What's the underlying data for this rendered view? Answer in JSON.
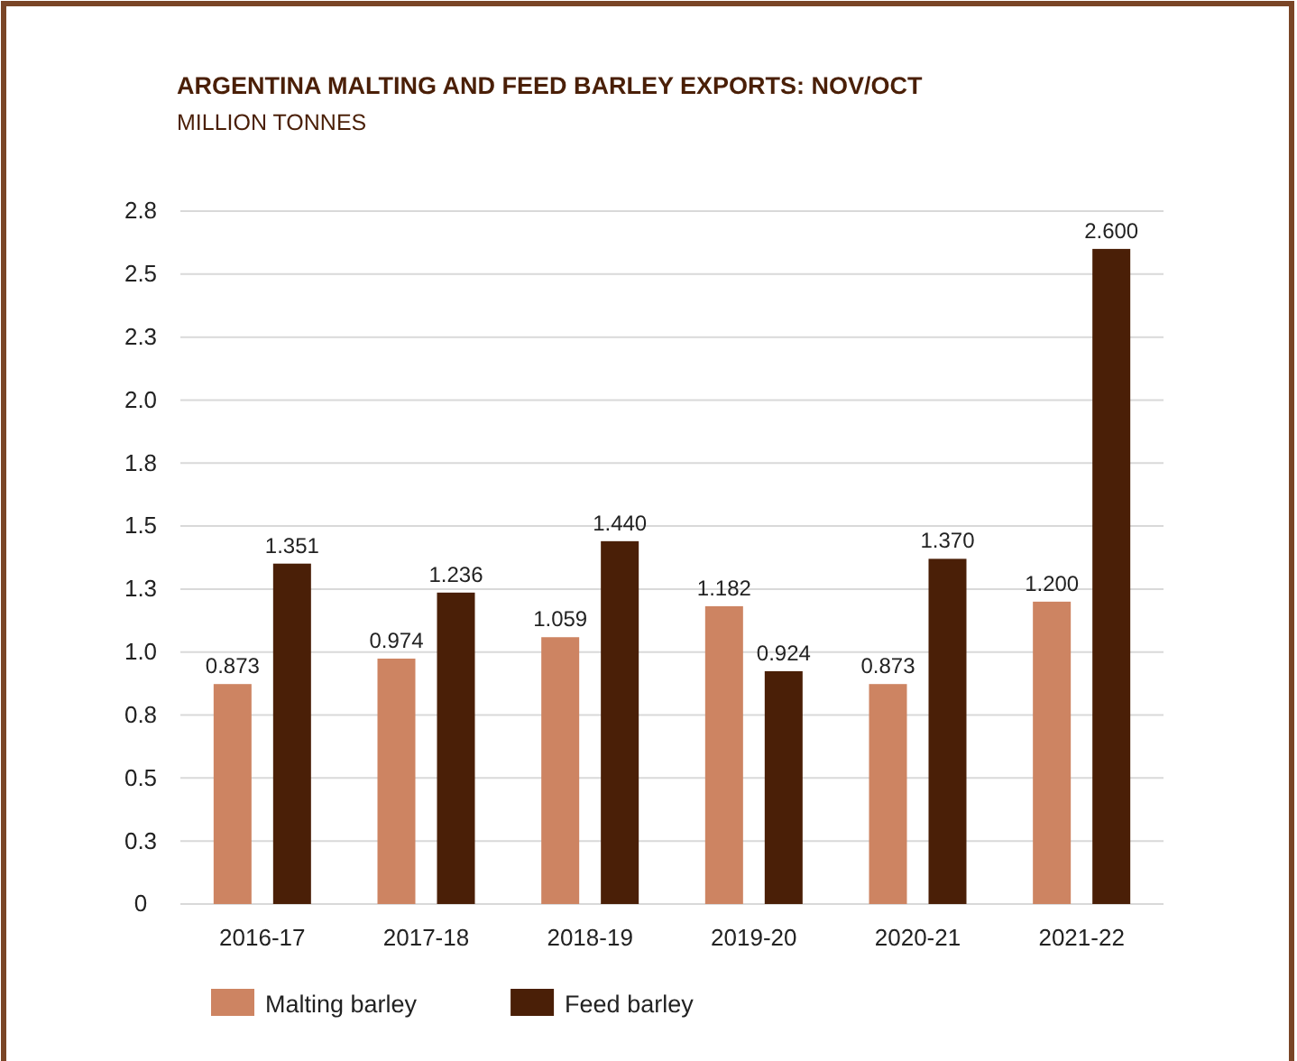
{
  "chart_data": {
    "type": "bar",
    "title": "ARGENTINA MALTING AND FEED BARLEY EXPORTS: NOV/OCT",
    "subtitle": "MILLION TONNES",
    "categories": [
      "2016-17",
      "2017-18",
      "2018-19",
      "2019-20",
      "2020-21",
      "2021-22"
    ],
    "series": [
      {
        "name": "Malting barley",
        "color": "#cd8462",
        "values": [
          0.873,
          0.974,
          1.059,
          1.182,
          0.873,
          1.2
        ],
        "value_labels": [
          "0.873",
          "0.974",
          "1.059",
          "1.182",
          "0.873",
          "1.200"
        ]
      },
      {
        "name": "Feed barley",
        "color": "#4a1f07",
        "values": [
          1.351,
          1.236,
          1.44,
          0.924,
          1.37,
          2.6
        ],
        "value_labels": [
          "1.351",
          "1.236",
          "1.440",
          "0.924",
          "1.370",
          "2.600"
        ]
      }
    ],
    "ylim": [
      0,
      2.75
    ],
    "yticks": [
      0,
      {
        "value": 0.25,
        "label": "0.3"
      },
      0.5,
      {
        "value": 0.75,
        "label": "0.8"
      },
      {
        "value": 1,
        "label": "1.0"
      },
      {
        "value": 1.25,
        "label": "1.3"
      },
      1.5,
      {
        "value": 1.75,
        "label": "1.8"
      },
      {
        "value": 2,
        "label": "2.0"
      },
      {
        "value": 2.25,
        "label": "2.3"
      },
      2.5,
      {
        "value": 2.75,
        "label": "2.8"
      }
    ],
    "grid": "y",
    "legend": "bottom"
  }
}
